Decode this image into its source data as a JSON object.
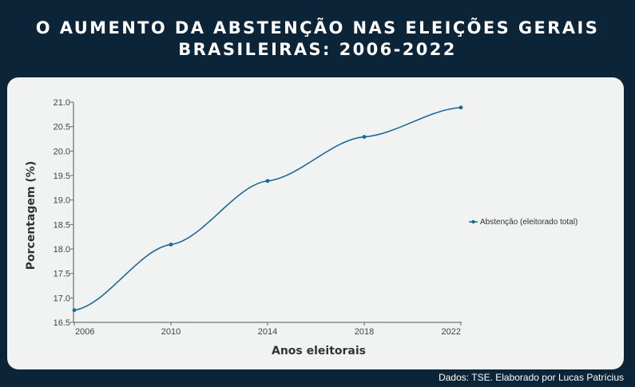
{
  "title": {
    "line1": "O AUMENTO DA ABSTENÇÃO NAS ELEIÇÕES GERAIS",
    "line2": "BRASILEIRAS: 2006-2022"
  },
  "source": "Dados: TSE. Elaborado por Lucas Patrícius",
  "colors": {
    "background": "#0b2438",
    "panel": "#f1f2f2",
    "series": "#1a6896"
  },
  "chart_data": {
    "type": "line",
    "title": "O AUMENTO DA ABSTENÇÃO NAS ELEIÇÕES GERAIS BRASILEIRAS: 2006-2022",
    "xlabel": "Anos eleitorais",
    "ylabel": "Porcentagem (%)",
    "x": [
      "2006",
      "2010",
      "2014",
      "2018",
      "2022"
    ],
    "series": [
      {
        "name": "Abstenção (eleitorado total)",
        "values": [
          16.75,
          18.09,
          19.39,
          20.29,
          20.89
        ]
      }
    ],
    "y_ticks": [
      "16.5",
      "17.0",
      "17.5",
      "18.0",
      "18.5",
      "19.0",
      "19.5",
      "20.0",
      "20.5",
      "21.0"
    ],
    "ylim": [
      16.5,
      21.0
    ],
    "grid": false,
    "legend_position": "right",
    "curve": "smooth"
  }
}
